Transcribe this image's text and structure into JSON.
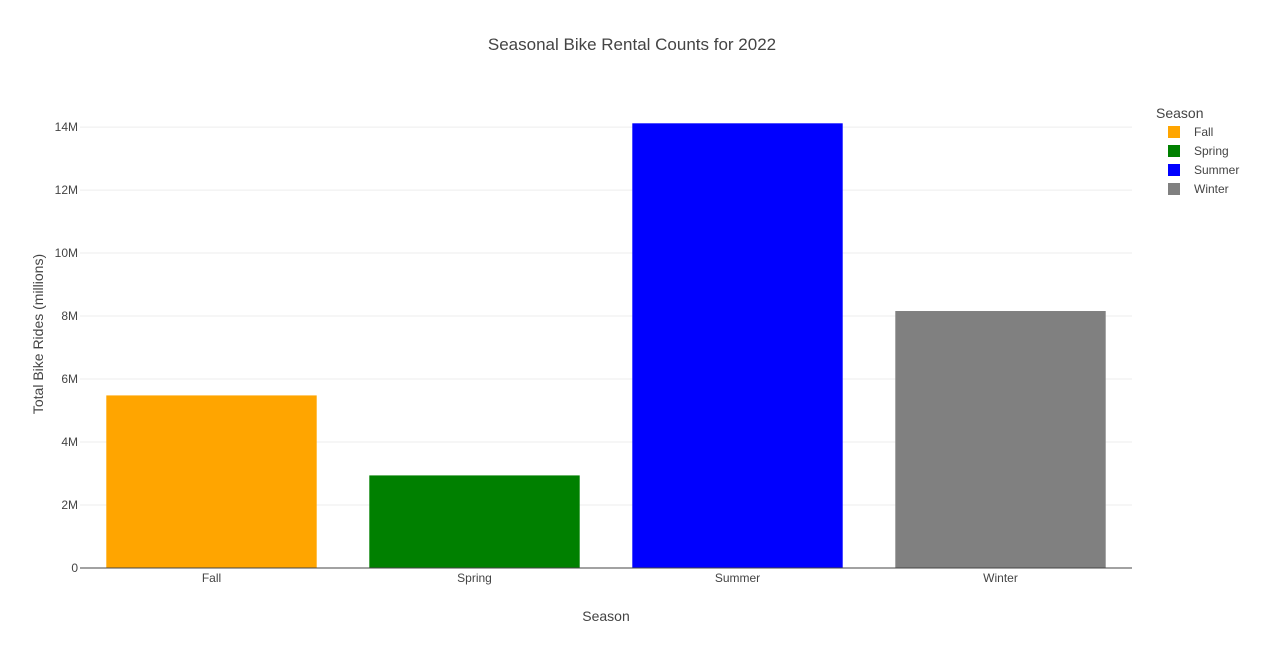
{
  "chart_data": {
    "type": "bar",
    "title": "Seasonal Bike Rental Counts for 2022",
    "xlabel": "Season",
    "ylabel": "Total Bike Rides (millions)",
    "categories": [
      "Fall",
      "Spring",
      "Summer",
      "Winter"
    ],
    "values": [
      5480000,
      2940000,
      14120000,
      8160000
    ],
    "colors": [
      "#FFA500",
      "#008000",
      "#0000FF",
      "#808080"
    ],
    "ylim": [
      0,
      14860000
    ],
    "yticks": [
      {
        "value": 0,
        "label": "0"
      },
      {
        "value": 2000000,
        "label": "2M"
      },
      {
        "value": 4000000,
        "label": "4M"
      },
      {
        "value": 6000000,
        "label": "6M"
      },
      {
        "value": 8000000,
        "label": "8M"
      },
      {
        "value": 10000000,
        "label": "10M"
      },
      {
        "value": 12000000,
        "label": "12M"
      },
      {
        "value": 14000000,
        "label": "14M"
      }
    ],
    "grid": true,
    "legend": {
      "title": "Season",
      "placement": "top-right",
      "items": [
        {
          "label": "Fall",
          "color": "#FFA500"
        },
        {
          "label": "Spring",
          "color": "#008000"
        },
        {
          "label": "Summer",
          "color": "#0000FF"
        },
        {
          "label": "Winter",
          "color": "#808080"
        }
      ]
    }
  }
}
